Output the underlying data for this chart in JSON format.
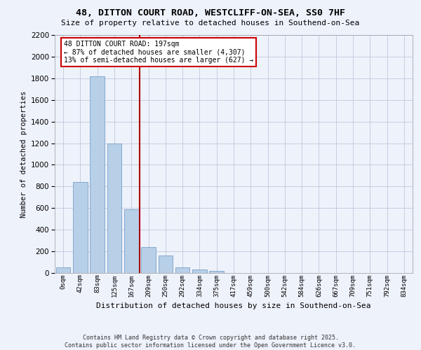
{
  "title": "48, DITTON COURT ROAD, WESTCLIFF-ON-SEA, SS0 7HF",
  "subtitle": "Size of property relative to detached houses in Southend-on-Sea",
  "xlabel": "Distribution of detached houses by size in Southend-on-Sea",
  "ylabel": "Number of detached properties",
  "categories": [
    "0sqm",
    "42sqm",
    "83sqm",
    "125sqm",
    "167sqm",
    "209sqm",
    "250sqm",
    "292sqm",
    "334sqm",
    "375sqm",
    "417sqm",
    "459sqm",
    "500sqm",
    "542sqm",
    "584sqm",
    "626sqm",
    "667sqm",
    "709sqm",
    "751sqm",
    "792sqm",
    "834sqm"
  ],
  "values": [
    50,
    840,
    1820,
    1200,
    590,
    240,
    160,
    50,
    30,
    20,
    0,
    0,
    0,
    0,
    0,
    0,
    0,
    0,
    0,
    0,
    0
  ],
  "bar_color": "#b8cfe8",
  "bar_edge_color": "#7aa0c8",
  "vline_color": "#aa0000",
  "annotation_text": "48 DITTON COURT ROAD: 197sqm\n← 87% of detached houses are smaller (4,307)\n13% of semi-detached houses are larger (627) →",
  "annotation_box_color": "#cc0000",
  "ylim": [
    0,
    2200
  ],
  "yticks": [
    0,
    200,
    400,
    600,
    800,
    1000,
    1200,
    1400,
    1600,
    1800,
    2000,
    2200
  ],
  "footer_line1": "Contains HM Land Registry data © Crown copyright and database right 2025.",
  "footer_line2": "Contains public sector information licensed under the Open Government Licence v3.0.",
  "bg_color": "#eef2fb",
  "grid_color": "#c0c8dc"
}
